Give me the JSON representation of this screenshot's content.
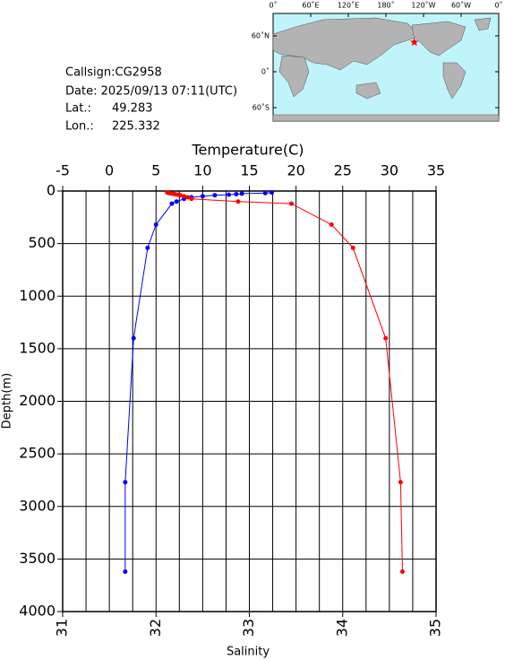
{
  "chart_data": {
    "type": "profile",
    "info": {
      "callsign": "Callsign:CG2958",
      "date": "Date:  2025/09/13 07:11(UTC)",
      "lat_label": "Lat.:",
      "lat": 49.283,
      "lon_label": "Lon.:",
      "lon": 225.332
    },
    "map": {
      "lonlim": [
        0,
        360
      ],
      "lonticks": [
        {
          "value": 0,
          "label": "0˚"
        },
        {
          "value": 60,
          "label": "60˚E"
        },
        {
          "value": 120,
          "label": "120˚E"
        },
        {
          "value": 180,
          "label": "180˚"
        },
        {
          "value": 240,
          "label": "120˚W"
        },
        {
          "value": 300,
          "label": "60˚W"
        },
        {
          "value": 360,
          "label": "0˚"
        }
      ],
      "latticks": [
        {
          "value": 60,
          "label": "60˚N"
        },
        {
          "value": 0,
          "label": "0˚"
        },
        {
          "value": -60,
          "label": "60˚S"
        }
      ],
      "marker_color": "#ff0000"
    },
    "xlabel_top": "Temperature(C)",
    "xlabel_bottom": "Salinity",
    "ylabel": "Depth(m)",
    "xlim": [
      -5,
      35
    ],
    "xticks": [
      -5,
      0,
      5,
      10,
      15,
      20,
      25,
      30,
      35
    ],
    "xgrid": [
      -5,
      -2.5,
      0,
      2.5,
      5,
      7.5,
      10,
      12.5,
      15,
      17.5,
      20,
      22.5,
      25,
      27.5,
      30,
      32.5,
      35
    ],
    "x2lim": [
      31,
      35
    ],
    "x2ticks": [
      31,
      32,
      33,
      34,
      35
    ],
    "ylim": [
      0,
      4000
    ],
    "yticks": [
      0,
      500,
      1000,
      1500,
      2000,
      2500,
      3000,
      3500,
      4000
    ],
    "depth": [
      15,
      20,
      25,
      30,
      35,
      40,
      50,
      60,
      75,
      100,
      120,
      320,
      540,
      1400,
      2770,
      3620
    ],
    "series": [
      {
        "name": "Temperature",
        "color": "#0000ff",
        "axis": "x",
        "values": [
          17.4,
          16.7,
          14.2,
          13.6,
          12.8,
          11.3,
          10.0,
          8.8,
          8.0,
          7.2,
          6.7,
          5.0,
          4.1,
          2.6,
          1.7,
          1.7
        ]
      },
      {
        "name": "Salinity",
        "color": "#ff0000",
        "axis": "x2",
        "values": [
          32.12,
          32.14,
          32.17,
          32.2,
          32.23,
          32.26,
          32.3,
          32.34,
          32.38,
          32.88,
          33.45,
          33.88,
          34.11,
          34.46,
          34.62,
          34.64
        ]
      }
    ],
    "grid": true
  }
}
